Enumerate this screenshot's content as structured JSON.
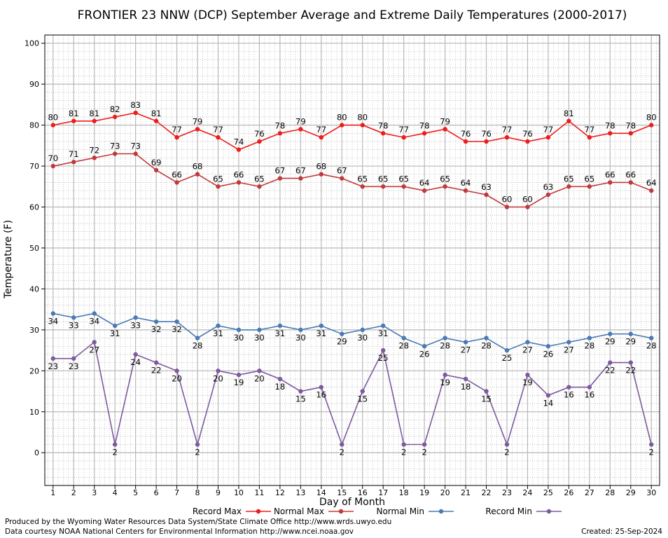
{
  "chart_data": {
    "type": "line",
    "title": "FRONTIER 23 NNW (DCP) September Average and Extreme Daily Temperatures (2000-2017)",
    "xlabel": "Day of Month",
    "ylabel": "Temperature (F)",
    "xlim": [
      0.6,
      30.4
    ],
    "ylim": [
      -8,
      102
    ],
    "x": [
      1,
      2,
      3,
      4,
      5,
      6,
      7,
      8,
      9,
      10,
      11,
      12,
      13,
      14,
      15,
      16,
      17,
      18,
      19,
      20,
      21,
      22,
      23,
      24,
      25,
      26,
      27,
      28,
      29,
      30
    ],
    "yticks": [
      0,
      10,
      20,
      30,
      40,
      50,
      60,
      70,
      80,
      90,
      100
    ],
    "grid": true,
    "legend_position": "bottom",
    "series": [
      {
        "name": "Record Max",
        "color": "#ee1c1c",
        "label_pos": "above",
        "values": [
          80,
          81,
          81,
          82,
          83,
          81,
          77,
          79,
          77,
          74,
          76,
          78,
          79,
          77,
          80,
          80,
          78,
          77,
          78,
          79,
          76,
          76,
          77,
          76,
          77,
          81,
          77,
          78,
          78,
          80
        ]
      },
      {
        "name": "Normal Max",
        "color": "#c0393b",
        "label_pos": "above",
        "values": [
          70,
          71,
          72,
          73,
          73,
          69,
          66,
          68,
          65,
          66,
          65,
          67,
          67,
          68,
          67,
          65,
          65,
          65,
          64,
          65,
          64,
          63,
          60,
          60,
          63,
          65,
          65,
          66,
          66,
          64
        ]
      },
      {
        "name": "Normal Min",
        "color": "#4a7ab4",
        "label_pos": "below",
        "values": [
          34,
          33,
          34,
          31,
          33,
          32,
          32,
          28,
          31,
          30,
          30,
          31,
          30,
          31,
          29,
          30,
          31,
          28,
          26,
          28,
          27,
          28,
          25,
          27,
          26,
          27,
          28,
          29,
          29,
          28
        ]
      },
      {
        "name": "Record Min",
        "color": "#7d5a9e",
        "label_pos": "below",
        "values": [
          23,
          23,
          27,
          2,
          24,
          22,
          20,
          2,
          20,
          19,
          20,
          18,
          15,
          16,
          2,
          15,
          25,
          2,
          2,
          19,
          18,
          15,
          2,
          19,
          14,
          16,
          16,
          22,
          22,
          2
        ]
      }
    ]
  },
  "footer": {
    "produced_by": "Produced by the Wyoming Water Resources Data System/State Climate Office http://www.wrds.uwyo.edu",
    "courtesy": "Data courtesy NOAA National Centers for Environmental Information http://www.ncei.noaa.gov",
    "created": "Created:  25-Sep-2024"
  }
}
